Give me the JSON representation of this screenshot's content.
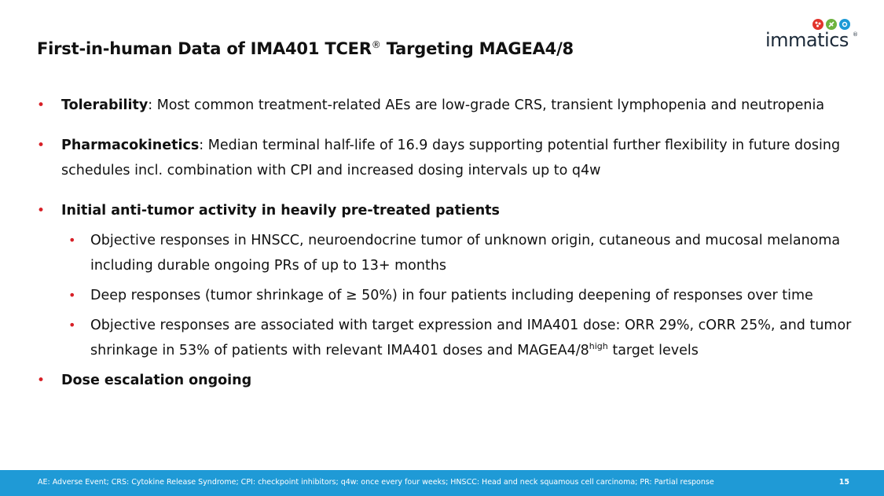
{
  "title": {
    "prefix": "First-in-human Data of IMA401 TCER",
    "reg_mark": "®",
    "suffix": " Targeting MAGEA4/8"
  },
  "logo": {
    "wordmark": "immatics",
    "reg_mark": "®",
    "dot_colors": [
      "#e2342c",
      "#6db33f",
      "#1c9ad6"
    ]
  },
  "bullets": {
    "tolerability": {
      "term": "Tolerability",
      "text": ": Most common treatment-related AEs are low-grade CRS, transient lymphopenia and neutropenia"
    },
    "pk": {
      "term": "Pharmacokinetics",
      "text": ": Median terminal half-life of 16.9 days supporting potential further flexibility in future dosing schedules incl. combination with CPI and increased dosing intervals up to q4w"
    },
    "activity": {
      "term": "Initial anti-tumor activity in heavily pre-treated patients",
      "sub1": "Objective responses in HNSCC, neuroendocrine tumor of unknown origin, cutaneous and mucosal melanoma including durable ongoing PRs of up to 13+ months",
      "sub2": "Deep responses (tumor shrinkage of ≥ 50%) in four patients including deepening of responses over time",
      "sub3_a": "Objective responses are associated with target expression and IMA401 dose: ORR 29%, cORR 25%, and tumor shrinkage in 53% of patients with relevant IMA401 doses and MAGEA4/8",
      "sub3_sup": "high",
      "sub3_b": " target levels"
    },
    "dose": {
      "term": "Dose escalation ongoing"
    }
  },
  "footer": {
    "note": "AE: Adverse Event; CRS: Cytokine Release Syndrome; CPI: checkpoint inhibitors; q4w: once every four weeks; HNSCC: Head and neck squamous cell carcinoma; PR: Partial response",
    "page_number": "15",
    "bar_color": "#1f9ad6"
  },
  "colors": {
    "bullet": "#d72027",
    "text": "#111111"
  }
}
